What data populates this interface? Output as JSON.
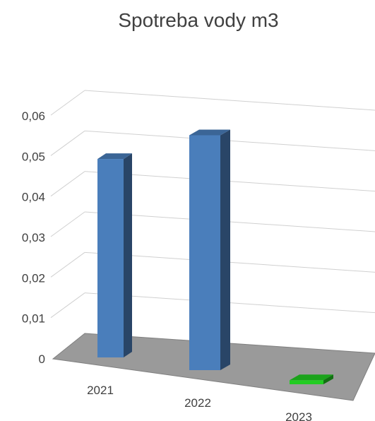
{
  "chart_data": {
    "type": "bar",
    "title": "Spotreba vody  m3",
    "categories": [
      "2021",
      "2022",
      "2023"
    ],
    "values": [
      0.049,
      0.058,
      0.001
    ],
    "y_tick_labels": [
      "0",
      "0,01",
      "0,02",
      "0,03",
      "0,04",
      "0,05",
      "0,06"
    ],
    "ylim": [
      0,
      0.06
    ],
    "grid": true,
    "colors": {
      "bar": "#4a7ebb",
      "highlight_bar": "#22cc22",
      "floor": "#9a9a9a"
    }
  }
}
